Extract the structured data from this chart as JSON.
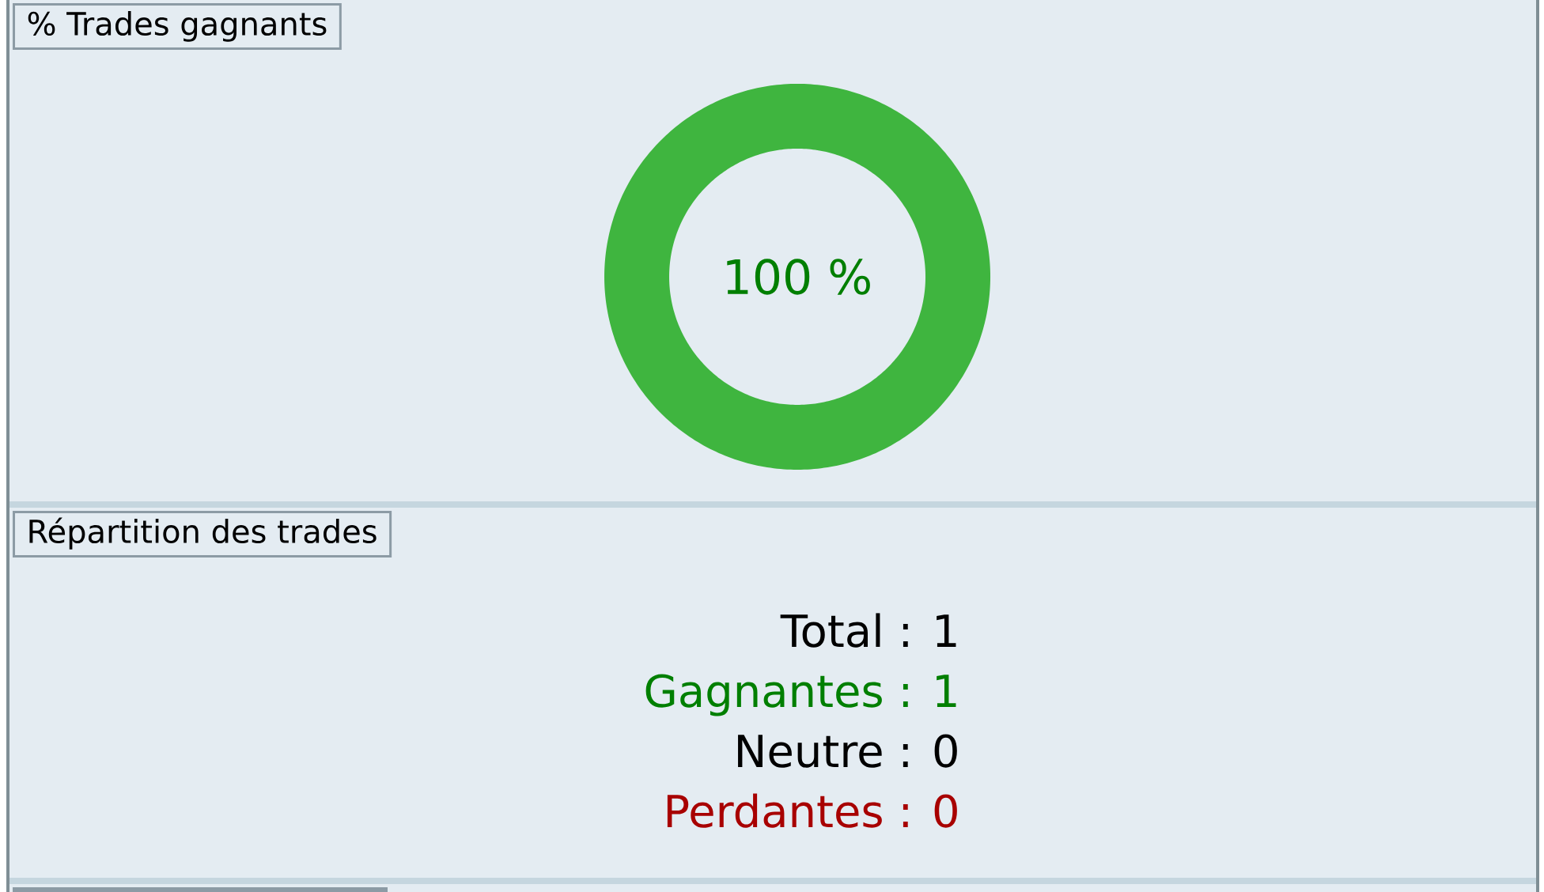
{
  "chart_data": [
    {
      "type": "donut",
      "title": "% Trades gagnants",
      "categories": [
        null
      ],
      "values": [
        100
      ],
      "colors": [
        "#3fb53f"
      ],
      "value_labels": [
        "100 %"
      ]
    },
    {
      "type": "other",
      "title": "Répartition des trades",
      "annotations": [
        "Total : 1",
        "Gagnantes : 1",
        "Neutre : 0",
        "Perdantes : 0"
      ],
      "colors": [
        "#000000",
        "#007f00",
        "#000000",
        "#a80000"
      ]
    }
  ]
}
